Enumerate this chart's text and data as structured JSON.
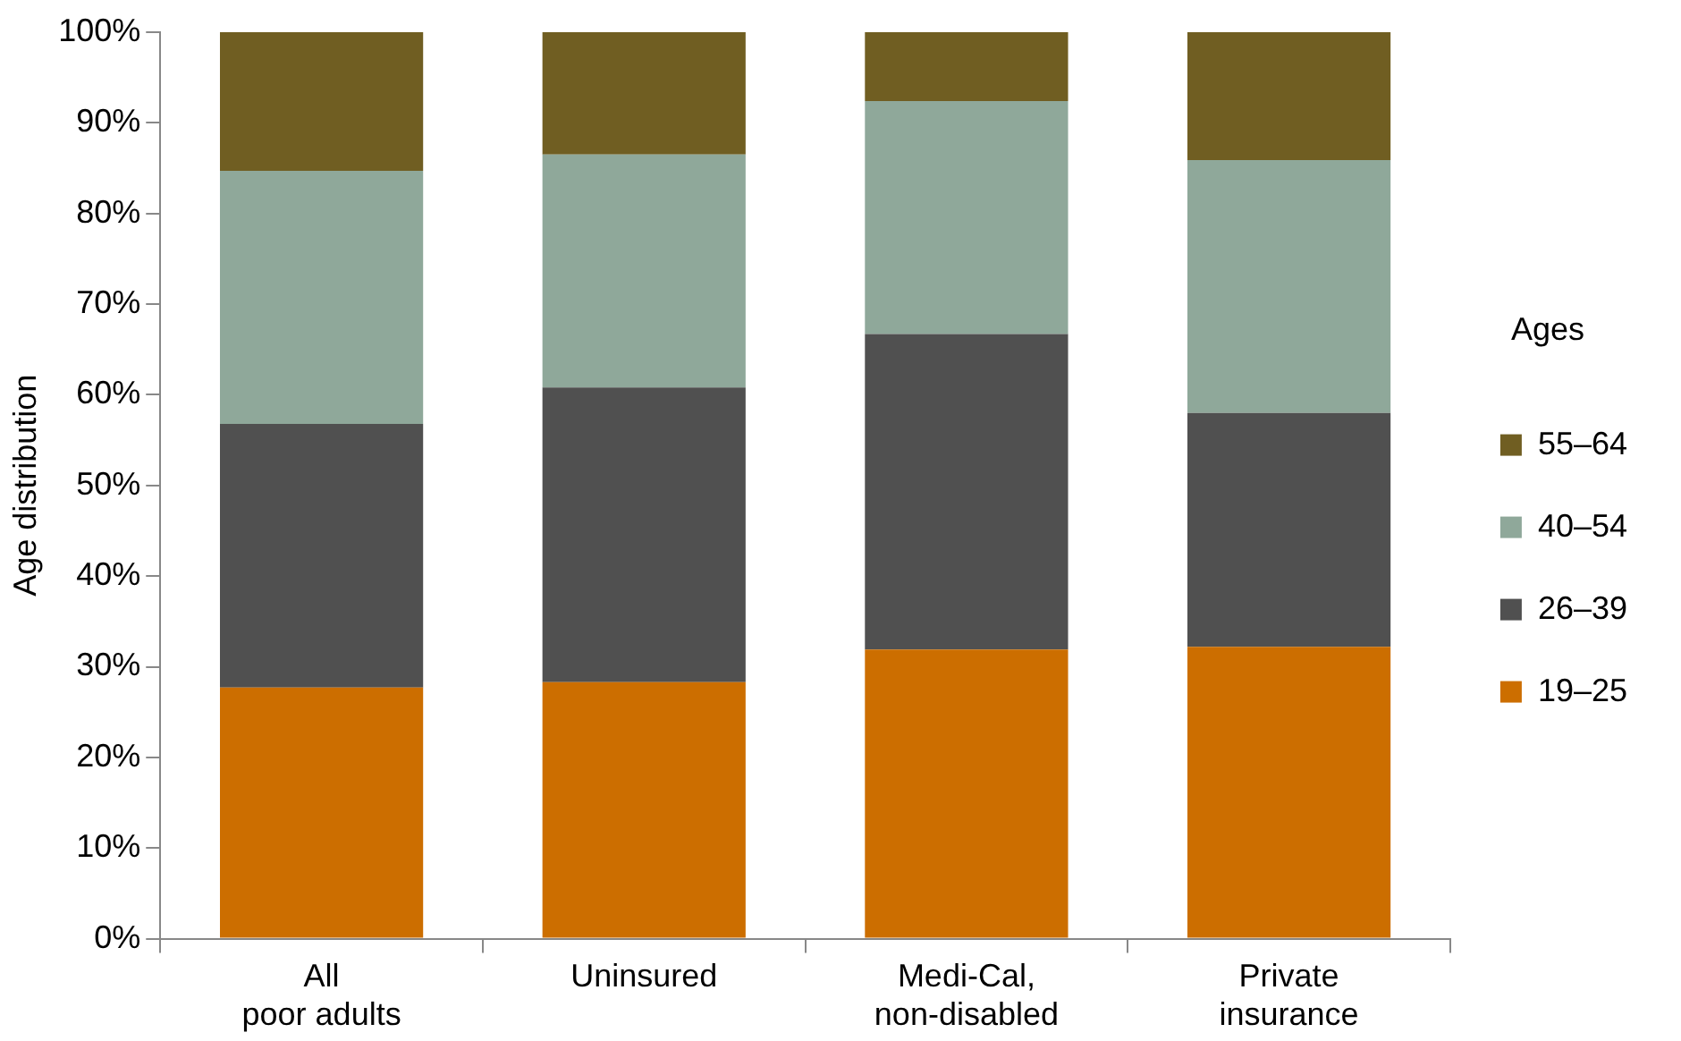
{
  "chart_data": {
    "type": "bar",
    "stacked": true,
    "ylabel": "Age distribution",
    "legend_title": "Ages",
    "legend": "right",
    "categories": [
      "All\npoor adults",
      "Uninsured",
      "Medi-Cal,\nnon-disabled",
      "Private\ninsurance"
    ],
    "series": [
      {
        "name": "19–25",
        "color": "#cc6e00",
        "values": [
          27.7,
          28.3,
          31.9,
          32.2
        ]
      },
      {
        "name": "26–39",
        "color": "#505050",
        "values": [
          29.1,
          32.5,
          34.8,
          25.8
        ]
      },
      {
        "name": "40–54",
        "color": "#8fa89a",
        "values": [
          27.9,
          25.7,
          25.7,
          27.9
        ]
      },
      {
        "name": "55–64",
        "color": "#705e22",
        "values": [
          15.3,
          13.5,
          7.6,
          14.1
        ]
      }
    ],
    "ylim": [
      0,
      100
    ],
    "yticks": [
      {
        "value": 0,
        "label": "0%"
      },
      {
        "value": 10,
        "label": "10%"
      },
      {
        "value": 20,
        "label": "20%"
      },
      {
        "value": 30,
        "label": "30%"
      },
      {
        "value": 40,
        "label": "40%"
      },
      {
        "value": 50,
        "label": "50%"
      },
      {
        "value": 60,
        "label": "60%"
      },
      {
        "value": 70,
        "label": "70%"
      },
      {
        "value": 80,
        "label": "80%"
      },
      {
        "value": 90,
        "label": "90%"
      },
      {
        "value": 100,
        "label": "100%"
      }
    ],
    "grid": false
  }
}
